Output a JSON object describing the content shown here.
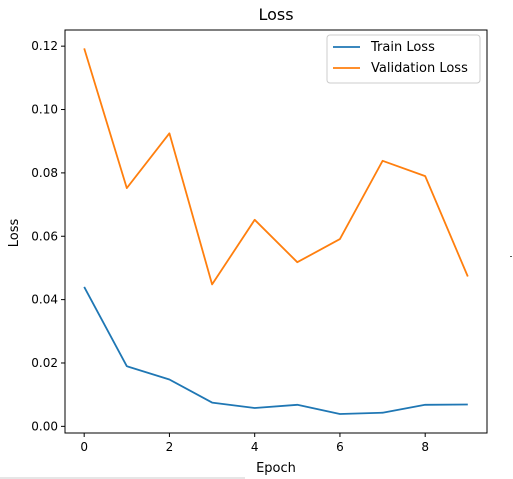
{
  "chart_data": {
    "type": "line",
    "title": "Loss",
    "xlabel": "Epoch",
    "ylabel": "Loss",
    "x": [
      0,
      1,
      2,
      3,
      4,
      5,
      6,
      7,
      8,
      9
    ],
    "xlim": [
      -0.45,
      9.45
    ],
    "ylim": [
      -0.0021,
      0.1251
    ],
    "xticks": [
      0,
      2,
      4,
      6,
      8
    ],
    "xtick_labels": [
      "0",
      "2",
      "4",
      "6",
      "8"
    ],
    "yticks": [
      0.0,
      0.02,
      0.04,
      0.06,
      0.08,
      0.1,
      0.12
    ],
    "ytick_labels": [
      "0.00",
      "0.02",
      "0.04",
      "0.06",
      "0.08",
      "0.10",
      "0.12"
    ],
    "grid": false,
    "legend_position": "top-right",
    "series": [
      {
        "name": "Train Loss",
        "color": "#1f77b4",
        "values": [
          0.044,
          0.019,
          0.0148,
          0.0075,
          0.0058,
          0.0068,
          0.0039,
          0.0043,
          0.0068,
          0.0069
        ]
      },
      {
        "name": "Validation Loss",
        "color": "#ff7f0e",
        "values": [
          0.1193,
          0.0752,
          0.0925,
          0.0448,
          0.0652,
          0.0518,
          0.0591,
          0.0838,
          0.079,
          0.0473
        ]
      }
    ]
  }
}
